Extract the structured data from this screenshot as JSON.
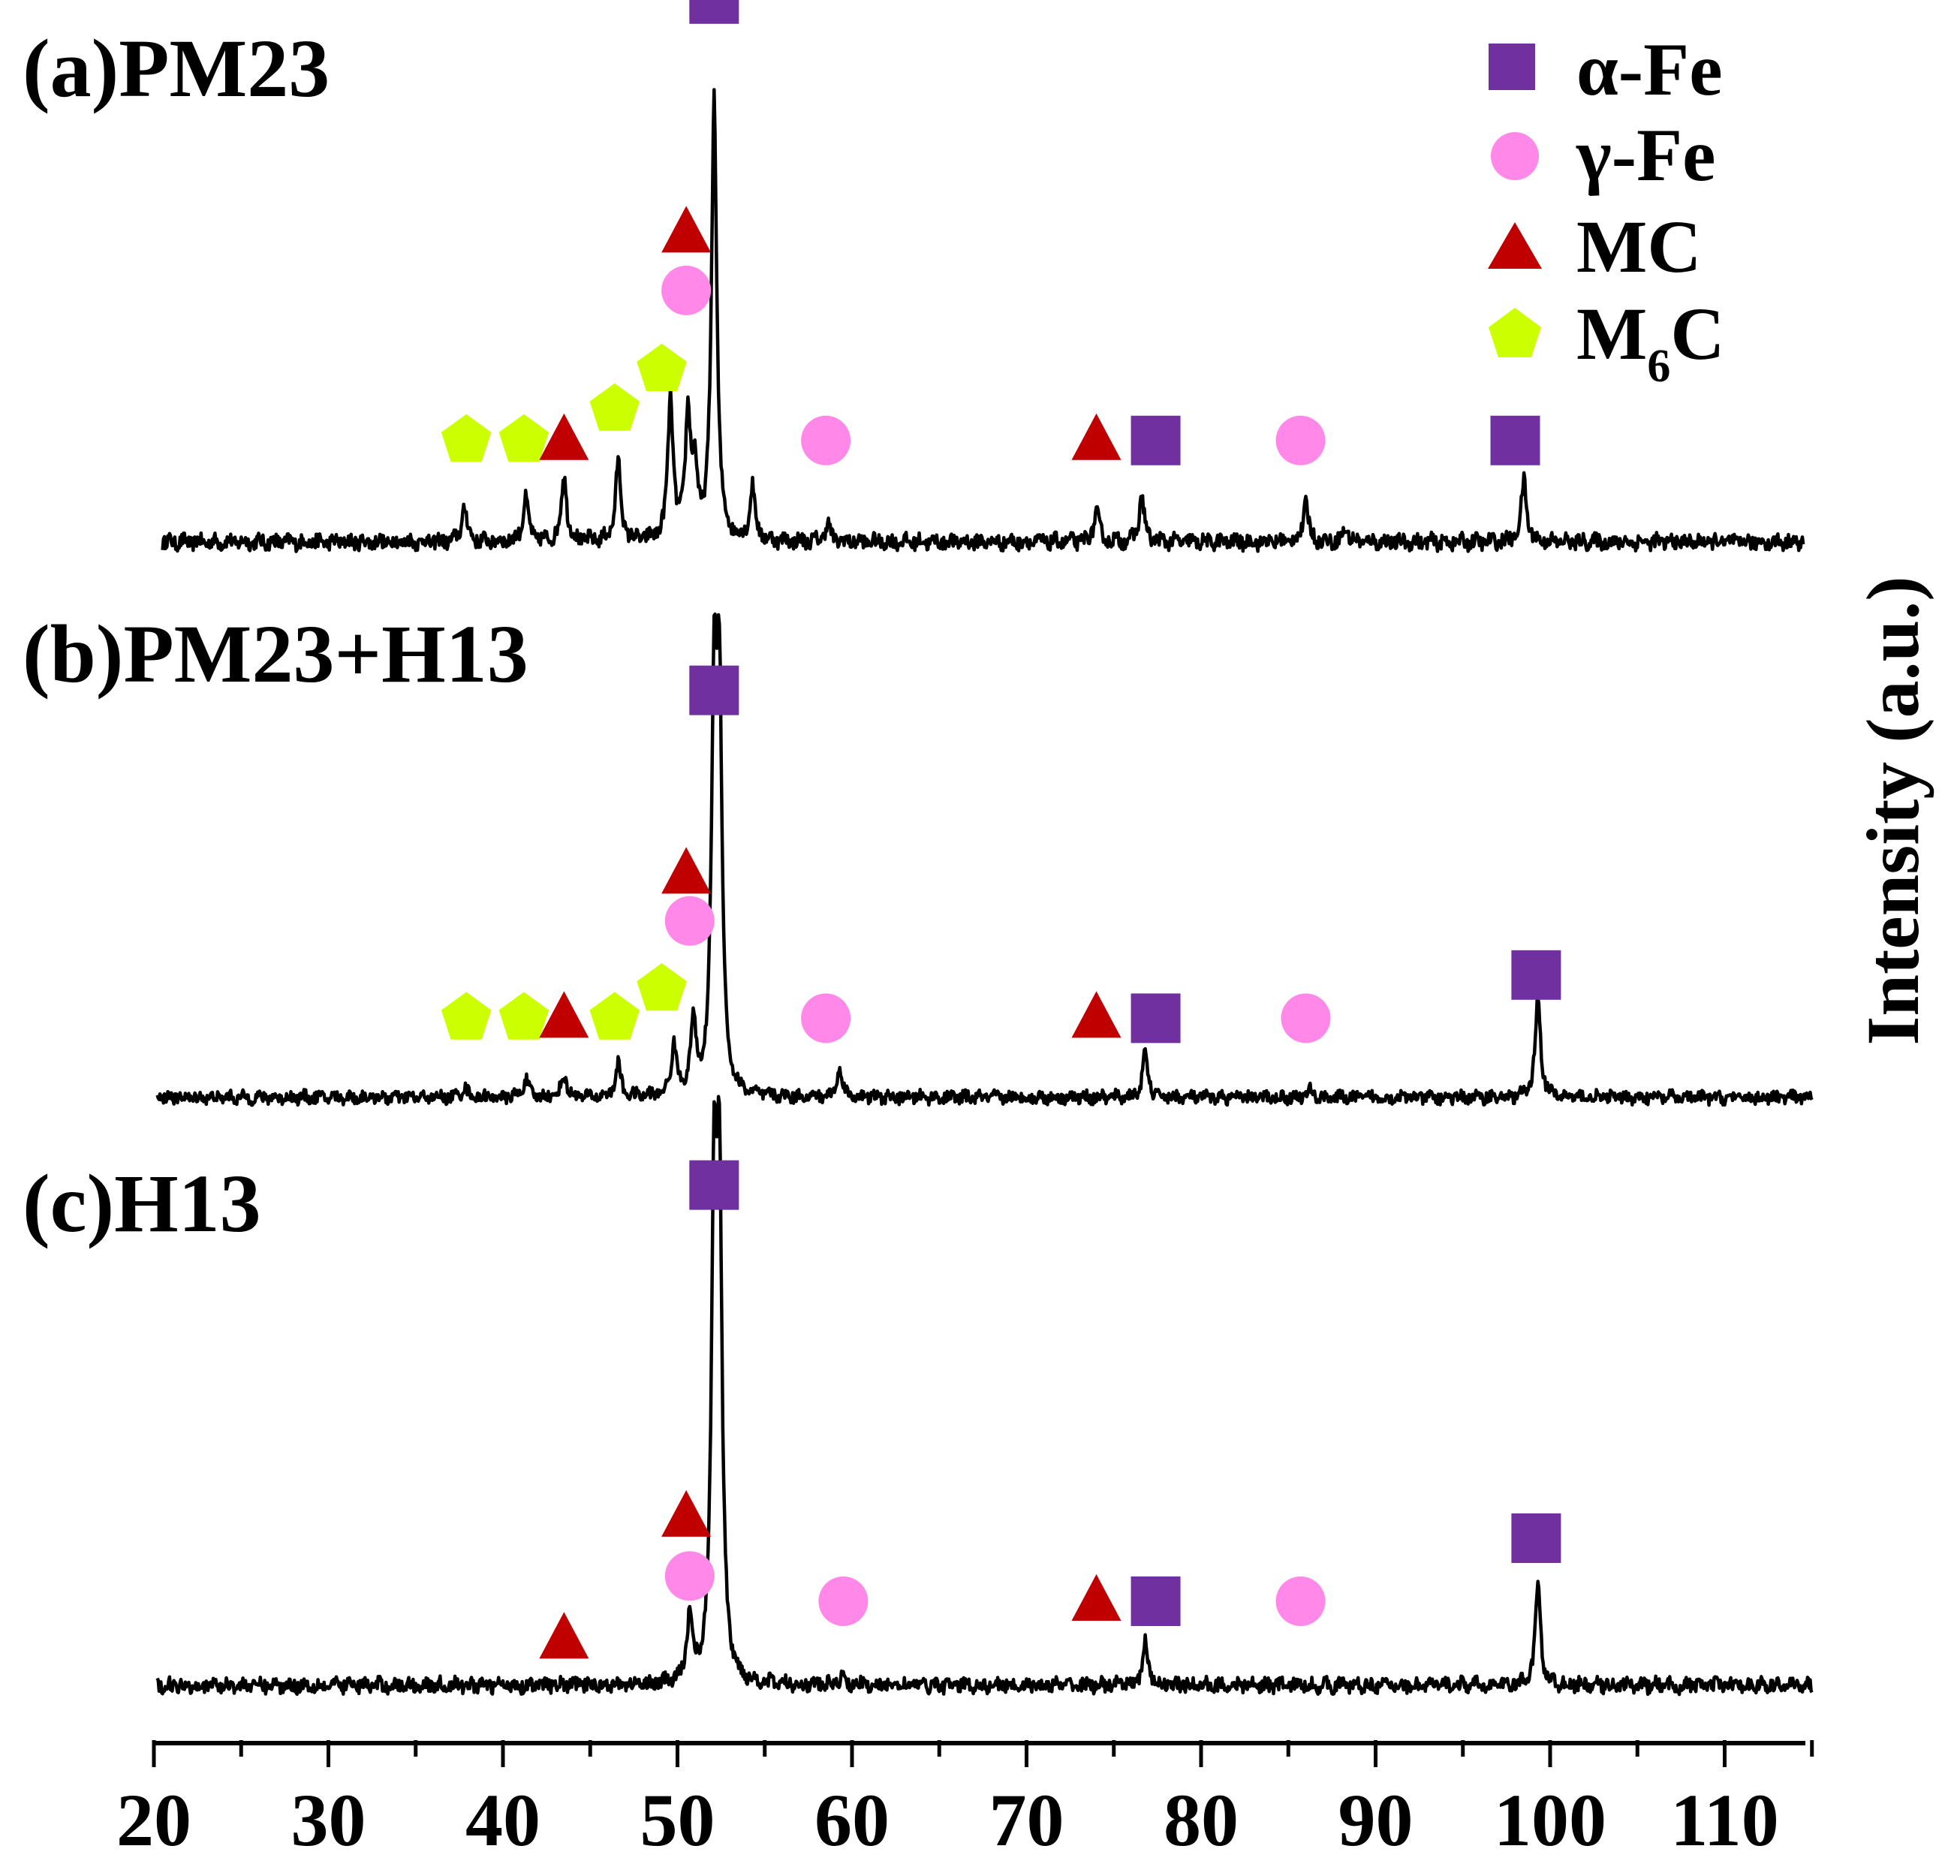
{
  "chart_data": {
    "type": "line",
    "title": "",
    "xlabel": "",
    "ylabel": "Intensity (a.u.)",
    "xlim": [
      20,
      115
    ],
    "x_ticks": [
      20,
      30,
      40,
      50,
      60,
      70,
      80,
      90,
      100,
      110
    ],
    "x_tick_labels": [
      "20",
      "30",
      "40",
      "50",
      "60",
      "70",
      "80",
      "90",
      "100",
      "110"
    ],
    "ylim": [
      0,
      100
    ],
    "grid": false,
    "legend": {
      "position": "top-right",
      "entries": [
        {
          "key": "alpha",
          "symbol": "square",
          "color": "#7030A0",
          "label": "α-Fe"
        },
        {
          "key": "gamma",
          "symbol": "circle",
          "color": "#FF88E8",
          "label": "γ-Fe"
        },
        {
          "key": "mc",
          "symbol": "triangle",
          "color": "#C00000",
          "label": "MC"
        },
        {
          "key": "m6c",
          "symbol": "pentagon",
          "color": "#CCFF00",
          "label": "M",
          "sub": "6",
          "tail": "C"
        }
      ]
    },
    "series": [
      {
        "name": "PM23",
        "label_prefix": "(a)",
        "label_name": "PM23",
        "x_start": 20.5,
        "x_end": 114.5,
        "peaks": [
          {
            "x": 37.8,
            "h": 8
          },
          {
            "x": 41.3,
            "h": 10
          },
          {
            "x": 43.5,
            "h": 15
          },
          {
            "x": 46.6,
            "h": 18
          },
          {
            "x": 49.6,
            "h": 32
          },
          {
            "x": 50.6,
            "h": 28
          },
          {
            "x": 51.0,
            "h": 14
          },
          {
            "x": 52.1,
            "h": 100
          },
          {
            "x": 54.3,
            "h": 12
          },
          {
            "x": 58.6,
            "h": 4
          },
          {
            "x": 74.0,
            "h": 7
          },
          {
            "x": 76.6,
            "h": 10
          },
          {
            "x": 86.0,
            "h": 9
          },
          {
            "x": 88.3,
            "h": 3
          },
          {
            "x": 98.5,
            "h": 14
          }
        ],
        "markers": [
          {
            "phase": "m6c",
            "x": 37.9,
            "h": 23
          },
          {
            "phase": "m6c",
            "x": 41.2,
            "h": 23
          },
          {
            "phase": "mc",
            "x": 43.5,
            "h": 23
          },
          {
            "phase": "m6c",
            "x": 46.4,
            "h": 30
          },
          {
            "phase": "m6c",
            "x": 49.1,
            "h": 39
          },
          {
            "phase": "gamma",
            "x": 50.5,
            "h": 57
          },
          {
            "phase": "mc",
            "x": 50.5,
            "h": 70
          },
          {
            "phase": "alpha",
            "x": 52.1,
            "h": 123
          },
          {
            "phase": "gamma",
            "x": 58.5,
            "h": 23
          },
          {
            "phase": "mc",
            "x": 74.0,
            "h": 23
          },
          {
            "phase": "alpha",
            "x": 77.4,
            "h": 23
          },
          {
            "phase": "gamma",
            "x": 85.7,
            "h": 23
          },
          {
            "phase": "alpha",
            "x": 98.0,
            "h": 23
          }
        ]
      },
      {
        "name": "PM23+H13",
        "label_prefix": "(b)",
        "label_name": "PM23+H13",
        "x_start": 20.2,
        "x_end": 115.0,
        "peaks": [
          {
            "x": 37.8,
            "h": 3
          },
          {
            "x": 41.3,
            "h": 5
          },
          {
            "x": 43.5,
            "h": 6
          },
          {
            "x": 46.6,
            "h": 9
          },
          {
            "x": 49.8,
            "h": 14
          },
          {
            "x": 50.9,
            "h": 20
          },
          {
            "x": 52.1,
            "h": 105
          },
          {
            "x": 52.4,
            "h": 105
          },
          {
            "x": 59.3,
            "h": 8
          },
          {
            "x": 76.8,
            "h": 12
          },
          {
            "x": 86.2,
            "h": 2
          },
          {
            "x": 99.3,
            "h": 28
          }
        ],
        "markers": [
          {
            "phase": "m6c",
            "x": 37.9,
            "h": 22
          },
          {
            "phase": "m6c",
            "x": 41.2,
            "h": 22
          },
          {
            "phase": "mc",
            "x": 43.5,
            "h": 22
          },
          {
            "phase": "m6c",
            "x": 46.4,
            "h": 22
          },
          {
            "phase": "m6c",
            "x": 49.1,
            "h": 30
          },
          {
            "phase": "gamma",
            "x": 50.7,
            "h": 49
          },
          {
            "phase": "mc",
            "x": 50.5,
            "h": 62
          },
          {
            "phase": "alpha",
            "x": 52.1,
            "h": 113
          },
          {
            "phase": "gamma",
            "x": 58.5,
            "h": 22
          },
          {
            "phase": "mc",
            "x": 74.0,
            "h": 22
          },
          {
            "phase": "alpha",
            "x": 77.4,
            "h": 22
          },
          {
            "phase": "gamma",
            "x": 86.0,
            "h": 22
          },
          {
            "phase": "alpha",
            "x": 99.2,
            "h": 34
          }
        ]
      },
      {
        "name": "H13",
        "label_prefix": "(c)",
        "label_name": "H13",
        "x_start": 20.2,
        "x_end": 115.0,
        "peaks": [
          {
            "x": 50.7,
            "h": 16
          },
          {
            "x": 52.1,
            "h": 110
          },
          {
            "x": 52.4,
            "h": 110
          },
          {
            "x": 59.4,
            "h": 2
          },
          {
            "x": 76.8,
            "h": 10
          },
          {
            "x": 99.3,
            "h": 24
          }
        ],
        "markers": [
          {
            "phase": "mc",
            "x": 43.5,
            "h": 11
          },
          {
            "phase": "gamma",
            "x": 50.7,
            "h": 26
          },
          {
            "phase": "mc",
            "x": 50.5,
            "h": 40
          },
          {
            "phase": "alpha",
            "x": 52.1,
            "h": 119
          },
          {
            "phase": "gamma",
            "x": 59.5,
            "h": 20
          },
          {
            "phase": "mc",
            "x": 74.0,
            "h": 20
          },
          {
            "phase": "alpha",
            "x": 77.4,
            "h": 20
          },
          {
            "phase": "gamma",
            "x": 85.7,
            "h": 20
          },
          {
            "phase": "alpha",
            "x": 99.2,
            "h": 35
          }
        ]
      }
    ]
  }
}
